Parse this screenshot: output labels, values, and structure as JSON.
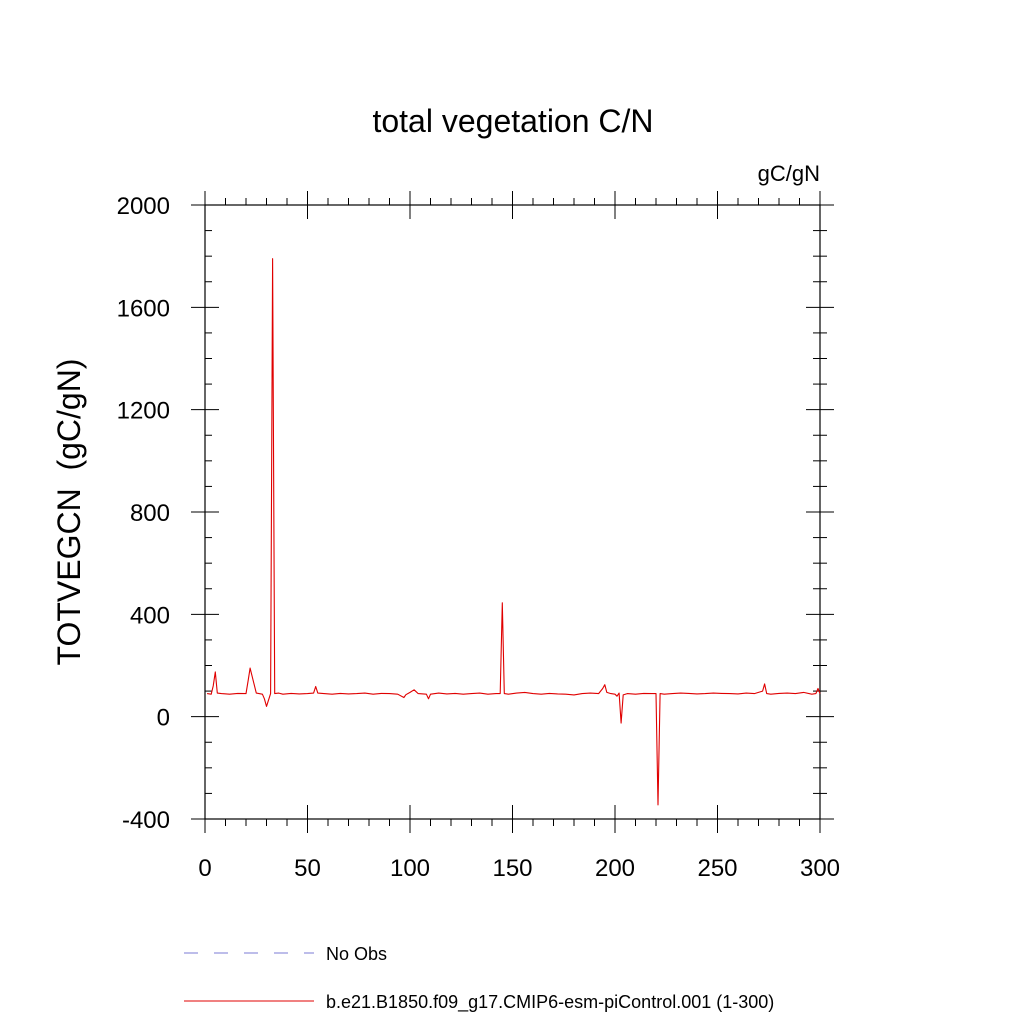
{
  "chart_data": {
    "type": "line",
    "title": "total vegetation C/N",
    "units": "gC/gN",
    "xlabel": "",
    "ylabel": "TOTVEGCN  (gC/gN)",
    "xlim": [
      0,
      300
    ],
    "ylim": [
      -400,
      2000
    ],
    "x_ticks": [
      0,
      50,
      100,
      150,
      200,
      250,
      300
    ],
    "x_tick_labels": [
      "0",
      "50",
      "100",
      "150",
      "200",
      "250",
      "300"
    ],
    "y_ticks": [
      -400,
      0,
      400,
      800,
      1200,
      1600,
      2000
    ],
    "y_tick_labels": [
      "-400",
      "0",
      "400",
      "800",
      "1200",
      "1600",
      "2000"
    ],
    "grid": false,
    "legend_position": "bottom",
    "legend": [
      {
        "name": "No Obs",
        "style": "dashed",
        "color": "#7b7bd6"
      },
      {
        "name": "b.e21.B1850.f09_g17.CMIP6-esm-piControl.001 (1-300)",
        "style": "solid",
        "color": "#e00000"
      }
    ],
    "series": [
      {
        "name": "b.e21.B1850.f09_g17.CMIP6-esm-piControl.001 (1-300)",
        "color": "#e00000",
        "x": [
          1,
          3,
          4,
          5,
          6,
          8,
          12,
          16,
          20,
          21,
          22,
          25,
          28,
          29,
          30,
          32,
          33,
          34,
          36,
          38,
          42,
          46,
          50,
          53,
          54,
          55,
          58,
          62,
          66,
          70,
          74,
          78,
          82,
          86,
          90,
          94,
          97,
          98,
          100,
          102,
          104,
          108,
          109,
          110,
          114,
          118,
          122,
          126,
          130,
          134,
          138,
          142,
          144,
          145,
          146,
          148,
          152,
          156,
          160,
          164,
          168,
          172,
          176,
          180,
          184,
          188,
          192,
          194,
          195,
          196,
          198,
          200,
          201,
          202,
          203,
          204,
          206,
          210,
          214,
          218,
          220,
          221,
          222,
          224,
          228,
          232,
          236,
          240,
          244,
          248,
          252,
          256,
          260,
          264,
          268,
          272,
          273,
          274,
          276,
          280,
          284,
          288,
          292,
          296,
          298,
          299,
          300
        ],
        "values": [
          90,
          88,
          120,
          175,
          92,
          90,
          88,
          91,
          90,
          140,
          190,
          92,
          88,
          70,
          40,
          90,
          1790,
          90,
          92,
          88,
          91,
          89,
          90,
          92,
          118,
          92,
          90,
          88,
          91,
          89,
          90,
          92,
          88,
          91,
          90,
          88,
          75,
          86,
          95,
          105,
          90,
          88,
          70,
          88,
          92,
          89,
          91,
          88,
          90,
          92,
          88,
          90,
          90,
          445,
          90,
          88,
          92,
          95,
          90,
          88,
          91,
          89,
          88,
          85,
          90,
          92,
          90,
          110,
          125,
          95,
          90,
          88,
          80,
          92,
          -25,
          85,
          90,
          88,
          91,
          90,
          90,
          -345,
          90,
          88,
          90,
          92,
          91,
          89,
          90,
          92,
          91,
          90,
          89,
          92,
          90,
          100,
          128,
          90,
          88,
          91,
          92,
          90,
          95,
          88,
          90,
          110,
          90
        ]
      }
    ]
  }
}
